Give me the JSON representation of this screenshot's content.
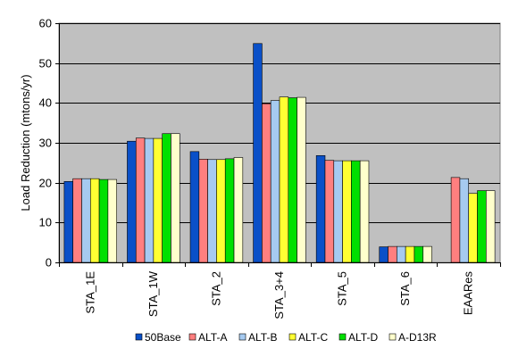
{
  "chart_data": {
    "type": "bar",
    "title": "",
    "xlabel": "",
    "ylabel": "Load Reduction (mtons/yr)",
    "ylim": [
      0,
      60
    ],
    "yticks": [
      0,
      10,
      20,
      30,
      40,
      50,
      60
    ],
    "grid": true,
    "legend_position": "bottom",
    "plot_background": "#c0c0c0",
    "categories": [
      "STA_1E",
      "STA_1W",
      "STA_2",
      "STA_3+4",
      "STA_5",
      "STA_6",
      "EAARes"
    ],
    "series": [
      {
        "name": "50Base",
        "color": "#0a50c8",
        "values": [
          20.3,
          30.4,
          27.8,
          54.9,
          26.8,
          3.9,
          null
        ]
      },
      {
        "name": "ALT-A",
        "color": "#ff7f7f",
        "values": [
          21.0,
          31.2,
          25.9,
          39.8,
          25.6,
          4.0,
          21.3
        ]
      },
      {
        "name": "ALT-B",
        "color": "#a6caf0",
        "values": [
          21.0,
          31.1,
          25.8,
          40.6,
          25.5,
          4.0,
          21.0
        ]
      },
      {
        "name": "ALT-C",
        "color": "#ffff33",
        "values": [
          21.0,
          31.1,
          25.8,
          41.5,
          25.5,
          4.0,
          17.3
        ]
      },
      {
        "name": "ALT-D",
        "color": "#00e000",
        "values": [
          20.8,
          32.3,
          26.0,
          41.3,
          25.5,
          4.0,
          18.0
        ]
      },
      {
        "name": "A-D13R",
        "color": "#ffffcc",
        "values": [
          20.8,
          32.3,
          26.3,
          41.4,
          25.5,
          4.0,
          18.0
        ]
      }
    ]
  }
}
